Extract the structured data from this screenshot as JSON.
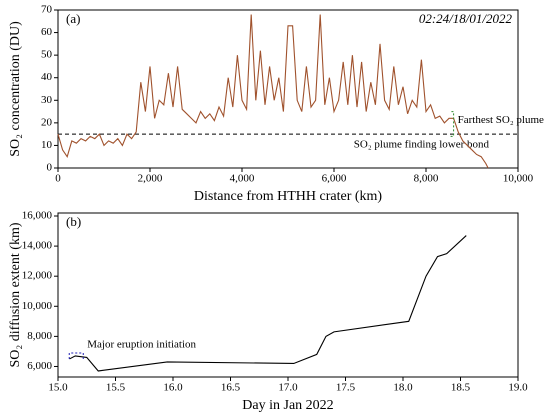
{
  "chart_data": [
    {
      "type": "line",
      "panel_label": "(a)",
      "timestamp": "02:24/18/01/2022",
      "x_label": "Distance from HTHH crater (km)",
      "y_label": "SO₂ concentration (DU)",
      "xlim": [
        0,
        10000
      ],
      "xticks": [
        0,
        {
          "value": 2000,
          "label": "2,000"
        },
        {
          "value": 4000,
          "label": "4,000"
        },
        {
          "value": 6000,
          "label": "6,000"
        },
        {
          "value": 8000,
          "label": "8,000"
        },
        {
          "value": 10000,
          "label": "10,000"
        }
      ],
      "ylim": [
        0,
        70
      ],
      "yticks": [
        0,
        10,
        20,
        30,
        40,
        50,
        60,
        70
      ],
      "threshold": {
        "value": 15,
        "label": "SO₂ plume finding lower bond"
      },
      "annotation": {
        "text": "Farthest SO₂ plume",
        "x": 8600,
        "color": "#2e8b2e"
      },
      "series": [
        {
          "color": "#a0522d",
          "x": [
            0,
            100,
            200,
            300,
            400,
            500,
            600,
            700,
            800,
            900,
            1000,
            1100,
            1200,
            1300,
            1400,
            1500,
            1600,
            1700,
            1800,
            1900,
            2000,
            2100,
            2200,
            2300,
            2400,
            2500,
            2600,
            2700,
            2800,
            2900,
            3000,
            3100,
            3200,
            3300,
            3400,
            3500,
            3600,
            3700,
            3800,
            3900,
            4000,
            4100,
            4200,
            4300,
            4400,
            4500,
            4600,
            4700,
            4800,
            4900,
            5000,
            5100,
            5200,
            5300,
            5400,
            5500,
            5600,
            5700,
            5800,
            5900,
            6000,
            6100,
            6200,
            6300,
            6400,
            6500,
            6600,
            6700,
            6800,
            6900,
            7000,
            7100,
            7200,
            7300,
            7400,
            7500,
            7600,
            7700,
            7800,
            7900,
            8000,
            8100,
            8200,
            8300,
            8400,
            8500,
            8600,
            8700,
            8800,
            8900,
            9000,
            9100,
            9200,
            9300,
            9350
          ],
          "values": [
            15,
            8,
            5,
            12,
            11,
            13,
            12,
            14,
            13,
            15,
            10,
            12,
            11,
            13,
            10,
            15,
            13,
            16,
            38,
            25,
            45,
            22,
            30,
            28,
            42,
            27,
            45,
            26,
            24,
            22,
            20,
            25,
            22,
            24,
            21,
            27,
            23,
            40,
            27,
            50,
            30,
            26,
            68,
            30,
            52,
            28,
            45,
            30,
            40,
            25,
            63,
            63,
            30,
            25,
            45,
            27,
            30,
            68,
            28,
            40,
            25,
            30,
            47,
            28,
            50,
            27,
            47,
            25,
            38,
            28,
            55,
            30,
            26,
            45,
            28,
            36,
            24,
            30,
            27,
            48,
            25,
            28,
            22,
            23,
            20,
            22,
            22,
            16,
            12,
            10,
            8,
            6,
            5,
            2,
            0
          ]
        }
      ]
    },
    {
      "type": "line",
      "panel_label": "(b)",
      "x_label": "Day in Jan 2022",
      "y_label": "SO₂ diffusion extent (km)",
      "xlim": [
        15,
        19
      ],
      "xticks": [
        {
          "value": 15,
          "label": "15.0"
        },
        15.5,
        {
          "value": 16,
          "label": "16.0"
        },
        16.5,
        {
          "value": 17,
          "label": "17.0"
        },
        17.5,
        {
          "value": 18,
          "label": "18.0"
        },
        18.5,
        {
          "value": 19,
          "label": "19.0"
        }
      ],
      "ylim": [
        5300,
        16200
      ],
      "yticks": [
        {
          "value": 6000,
          "label": "6,000"
        },
        {
          "value": 8000,
          "label": "8,000"
        },
        {
          "value": 10000,
          "label": "10,000"
        },
        {
          "value": 12000,
          "label": "12,000"
        },
        {
          "value": 14000,
          "label": "14,000"
        },
        {
          "value": 16000,
          "label": "16,000"
        }
      ],
      "annotation": {
        "text": "Major eruption initiation",
        "x": 15.15,
        "color": "#1f1fb4"
      },
      "series": [
        {
          "color": "#000000",
          "x": [
            15.1,
            15.15,
            15.25,
            15.35,
            15.4,
            15.95,
            17.05,
            17.25,
            17.33,
            17.4,
            18.05,
            18.2,
            18.3,
            18.38,
            18.55
          ],
          "values": [
            6500,
            6700,
            6600,
            5700,
            5750,
            6300,
            6200,
            6800,
            8000,
            8300,
            9000,
            12000,
            13300,
            13500,
            14700
          ]
        }
      ]
    }
  ]
}
